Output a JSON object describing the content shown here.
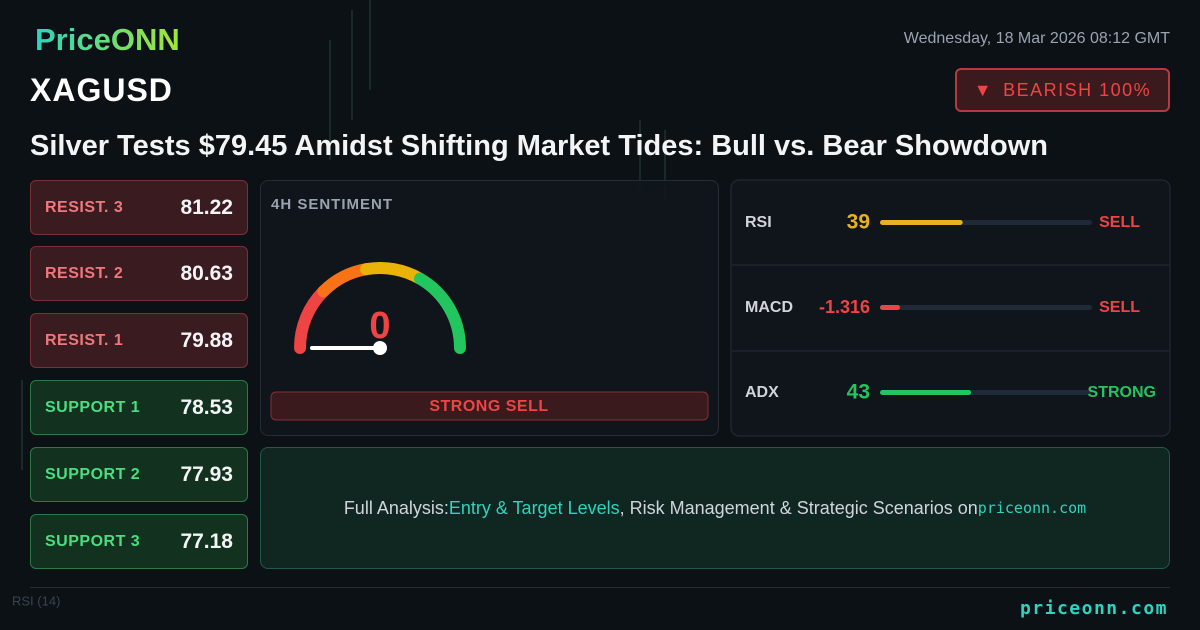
{
  "header": {
    "logo": "PriceONN",
    "date": "Wednesday, 18 Mar 2026 08:12 GMT",
    "symbol": "XAGUSD",
    "signal": "BEARISH 100%",
    "title": "Silver Tests $79.45 Amidst Shifting Market Tides: Bull vs. Bear Showdown"
  },
  "levels": [
    {
      "label": "RESIST. 3",
      "value": "81.22",
      "kind": "resist"
    },
    {
      "label": "RESIST. 2",
      "value": "80.63",
      "kind": "resist"
    },
    {
      "label": "RESIST. 1",
      "value": "79.88",
      "kind": "resist"
    },
    {
      "label": "SUPPORT 1",
      "value": "78.53",
      "kind": "support"
    },
    {
      "label": "SUPPORT 2",
      "value": "77.93",
      "kind": "support"
    },
    {
      "label": "SUPPORT 3",
      "value": "77.18",
      "kind": "support"
    }
  ],
  "sentiment": {
    "label": "4H SENTIMENT",
    "value": 0,
    "verdict": "STRONG SELL"
  },
  "indicators": [
    {
      "name": "RSI",
      "value": 39,
      "status": "SELL",
      "color": "#e8b120",
      "status_color": "#ef4444"
    },
    {
      "name": "MACD",
      "value": -1.316,
      "status": "SELL",
      "color": "#ef4444",
      "status_color": "#ef4444"
    },
    {
      "name": "ADX",
      "value": 43,
      "status": "STRONG",
      "color": "#22c55e",
      "status_color": "#22c55e"
    }
  ],
  "cta": {
    "prefix": "Full Analysis:",
    "highlight": "Entry & Target Levels",
    "middle": ", Risk Management & Strategic Scenarios on",
    "site": "priceonn.com"
  },
  "background_label": "RSI (14)",
  "footer": {
    "site": "priceonn.com"
  }
}
